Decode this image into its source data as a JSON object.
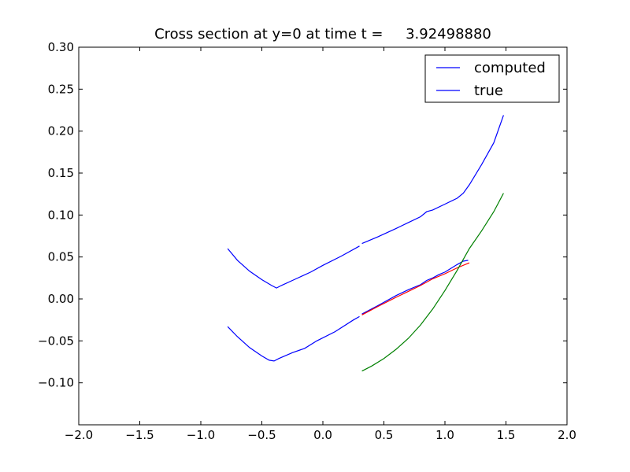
{
  "chart_data": {
    "type": "line",
    "title": "Cross section at y=0 at time t =     3.92498880",
    "xlabel": "",
    "ylabel": "",
    "xlim": [
      -2.0,
      2.0
    ],
    "ylim": [
      -0.15,
      0.3
    ],
    "x_ticks": [
      "−2.0",
      "−1.5",
      "−1.0",
      "−0.5",
      "0.0",
      "0.5",
      "1.0",
      "1.5",
      "2.0"
    ],
    "x_tick_values": [
      -2.0,
      -1.5,
      -1.0,
      -0.5,
      0.0,
      0.5,
      1.0,
      1.5,
      2.0
    ],
    "y_ticks": [
      "−0.10",
      "−0.05",
      "0.00",
      "0.05",
      "0.10",
      "0.15",
      "0.20",
      "0.25",
      "0.30"
    ],
    "y_tick_values": [
      -0.1,
      -0.05,
      0.0,
      0.05,
      0.1,
      0.15,
      0.2,
      0.25,
      0.3
    ],
    "grid": false,
    "legend_position": "top-right",
    "legend": [
      {
        "label": "computed",
        "color": "#0000ff"
      },
      {
        "label": "true",
        "color": "#0000ff"
      }
    ],
    "series": [
      {
        "color": "#0000ff",
        "points": [
          [
            -0.78,
            0.06
          ],
          [
            -0.7,
            0.046
          ],
          [
            -0.6,
            0.033
          ],
          [
            -0.5,
            0.023
          ],
          [
            -0.42,
            0.016
          ],
          [
            -0.38,
            0.013
          ],
          [
            -0.34,
            0.016
          ],
          [
            -0.25,
            0.022
          ],
          [
            -0.1,
            0.032
          ],
          [
            0.0,
            0.04
          ],
          [
            0.15,
            0.051
          ],
          [
            0.3,
            0.063
          ]
        ]
      },
      {
        "color": "#0000ff",
        "points": [
          [
            0.32,
            0.066
          ],
          [
            0.45,
            0.074
          ],
          [
            0.6,
            0.084
          ],
          [
            0.7,
            0.091
          ],
          [
            0.8,
            0.098
          ],
          [
            0.85,
            0.104
          ],
          [
            0.9,
            0.106
          ],
          [
            1.0,
            0.113
          ],
          [
            1.1,
            0.12
          ],
          [
            1.15,
            0.126
          ],
          [
            1.2,
            0.136
          ],
          [
            1.3,
            0.16
          ],
          [
            1.4,
            0.186
          ],
          [
            1.48,
            0.219
          ]
        ]
      },
      {
        "color": "#0000ff",
        "points": [
          [
            -0.78,
            -0.033
          ],
          [
            -0.7,
            -0.045
          ],
          [
            -0.6,
            -0.058
          ],
          [
            -0.5,
            -0.068
          ],
          [
            -0.44,
            -0.073
          ],
          [
            -0.4,
            -0.074
          ],
          [
            -0.36,
            -0.071
          ],
          [
            -0.25,
            -0.064
          ],
          [
            -0.15,
            -0.059
          ],
          [
            -0.05,
            -0.05
          ],
          [
            0.1,
            -0.039
          ],
          [
            0.25,
            -0.025
          ],
          [
            0.3,
            -0.021
          ]
        ]
      },
      {
        "color": "#0000ff",
        "points": [
          [
            0.32,
            -0.018
          ],
          [
            0.45,
            -0.008
          ],
          [
            0.6,
            0.004
          ],
          [
            0.7,
            0.011
          ],
          [
            0.8,
            0.017
          ],
          [
            0.85,
            0.022
          ],
          [
            0.9,
            0.025
          ],
          [
            0.95,
            0.029
          ],
          [
            1.0,
            0.032
          ],
          [
            1.1,
            0.041
          ],
          [
            1.15,
            0.045
          ],
          [
            1.19,
            0.046
          ]
        ]
      },
      {
        "color": "#ff0000",
        "points": [
          [
            0.32,
            -0.019
          ],
          [
            0.45,
            -0.009
          ],
          [
            0.6,
            0.002
          ],
          [
            0.7,
            0.009
          ],
          [
            0.8,
            0.016
          ],
          [
            0.9,
            0.024
          ],
          [
            1.0,
            0.03
          ],
          [
            1.1,
            0.037
          ],
          [
            1.2,
            0.043
          ]
        ]
      },
      {
        "color": "#008000",
        "points": [
          [
            0.32,
            -0.086
          ],
          [
            0.4,
            -0.08
          ],
          [
            0.5,
            -0.071
          ],
          [
            0.6,
            -0.06
          ],
          [
            0.7,
            -0.047
          ],
          [
            0.8,
            -0.031
          ],
          [
            0.9,
            -0.012
          ],
          [
            1.0,
            0.01
          ],
          [
            1.1,
            0.034
          ],
          [
            1.2,
            0.06
          ],
          [
            1.3,
            0.081
          ],
          [
            1.4,
            0.104
          ],
          [
            1.48,
            0.126
          ]
        ]
      }
    ]
  }
}
